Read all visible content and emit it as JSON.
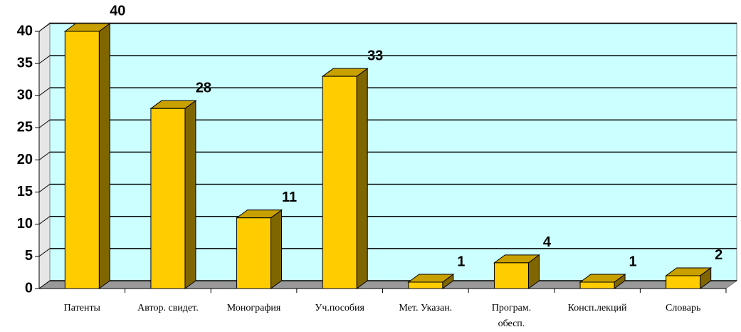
{
  "chart_data": {
    "type": "bar3d",
    "categories": [
      "Патенты",
      "Автор. свидет.",
      "Монография",
      "Уч.пособия",
      "Мет. Указан.",
      "Програм.\nобесп.",
      "Консп.лекций",
      "Словарь"
    ],
    "values": [
      40,
      28,
      11,
      33,
      1,
      4,
      1,
      2
    ],
    "color": "#ffcc00",
    "wall_color": "#ccffff",
    "floor_color": "#999999",
    "ylim": [
      0,
      40
    ],
    "yticks": [
      0,
      5,
      10,
      15,
      20,
      25,
      30,
      35,
      40
    ],
    "grid": true
  }
}
